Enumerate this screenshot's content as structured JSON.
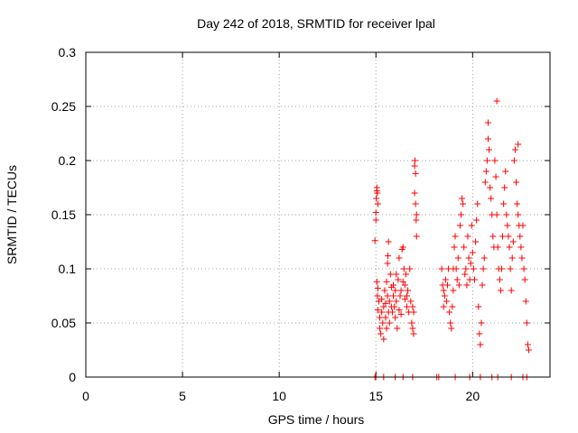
{
  "chart_data": {
    "type": "scatter",
    "title": "Day 242 of 2018, SRMTID for receiver lpal",
    "xlabel": "GPS time / hours",
    "ylabel": "SRMTID / TECUs",
    "xlim": [
      0,
      24
    ],
    "ylim": [
      0,
      0.3
    ],
    "xticks": [
      0,
      5,
      10,
      15,
      20
    ],
    "yticks": [
      0,
      0.05,
      0.1,
      0.15,
      0.2,
      0.25,
      0.3
    ],
    "ytick_labels": [
      "0",
      "0.05",
      "0.1",
      "0.15",
      "0.2",
      "0.25",
      "0.3"
    ],
    "grid": true,
    "marker": "+",
    "marker_color": "#ff0000",
    "series": [
      {
        "name": "SRMTID",
        "points": [
          [
            14.95,
            0.0
          ],
          [
            15.0,
            0.0
          ],
          [
            15.4,
            0.0
          ],
          [
            16.0,
            0.0
          ],
          [
            16.4,
            0.0
          ],
          [
            16.9,
            0.0
          ],
          [
            18.15,
            0.0
          ],
          [
            18.25,
            0.0
          ],
          [
            19.1,
            0.0
          ],
          [
            19.85,
            0.0
          ],
          [
            20.4,
            0.0
          ],
          [
            21.0,
            0.0
          ],
          [
            21.3,
            0.0
          ],
          [
            22.0,
            0.0
          ],
          [
            22.6,
            0.0
          ],
          [
            22.8,
            0.0
          ],
          [
            14.95,
            0.126
          ],
          [
            15.0,
            0.145
          ],
          [
            15.0,
            0.152
          ],
          [
            15.02,
            0.165
          ],
          [
            15.05,
            0.172
          ],
          [
            15.05,
            0.175
          ],
          [
            15.07,
            0.17
          ],
          [
            15.1,
            0.16
          ],
          [
            15.05,
            0.088
          ],
          [
            15.1,
            0.082
          ],
          [
            15.08,
            0.075
          ],
          [
            15.1,
            0.062
          ],
          [
            15.15,
            0.07
          ],
          [
            15.2,
            0.055
          ],
          [
            15.2,
            0.045
          ],
          [
            15.25,
            0.04
          ],
          [
            15.3,
            0.06
          ],
          [
            15.3,
            0.072
          ],
          [
            15.35,
            0.05
          ],
          [
            15.4,
            0.065
          ],
          [
            15.4,
            0.035
          ],
          [
            15.45,
            0.08
          ],
          [
            15.5,
            0.068
          ],
          [
            15.5,
            0.055
          ],
          [
            15.55,
            0.045
          ],
          [
            15.55,
            0.088
          ],
          [
            15.6,
            0.075
          ],
          [
            15.6,
            0.105
          ],
          [
            15.62,
            0.112
          ],
          [
            15.65,
            0.125
          ],
          [
            15.65,
            0.06
          ],
          [
            15.7,
            0.07
          ],
          [
            15.7,
            0.05
          ],
          [
            15.75,
            0.095
          ],
          [
            15.8,
            0.083
          ],
          [
            15.8,
            0.065
          ],
          [
            15.85,
            0.06
          ],
          [
            15.9,
            0.075
          ],
          [
            15.9,
            0.085
          ],
          [
            15.95,
            0.065
          ],
          [
            16.0,
            0.055
          ],
          [
            16.0,
            0.08
          ],
          [
            16.05,
            0.095
          ],
          [
            16.05,
            0.07
          ],
          [
            16.1,
            0.045
          ],
          [
            16.15,
            0.09
          ],
          [
            16.2,
            0.11
          ],
          [
            16.2,
            0.062
          ],
          [
            16.25,
            0.075
          ],
          [
            16.3,
            0.08
          ],
          [
            16.3,
            0.058
          ],
          [
            16.35,
            0.118
          ],
          [
            16.4,
            0.12
          ],
          [
            16.4,
            0.088
          ],
          [
            16.45,
            0.1
          ],
          [
            16.5,
            0.072
          ],
          [
            16.5,
            0.085
          ],
          [
            16.55,
            0.095
          ],
          [
            16.6,
            0.065
          ],
          [
            16.6,
            0.075
          ],
          [
            16.65,
            0.08
          ],
          [
            16.7,
            0.06
          ],
          [
            16.75,
            0.1
          ],
          [
            16.8,
            0.07
          ],
          [
            16.85,
            0.05
          ],
          [
            16.9,
            0.045
          ],
          [
            16.9,
            0.065
          ],
          [
            16.95,
            0.04
          ],
          [
            16.95,
            0.06
          ],
          [
            17.0,
            0.195
          ],
          [
            17.0,
            0.17
          ],
          [
            17.02,
            0.2
          ],
          [
            17.05,
            0.188
          ],
          [
            17.05,
            0.16
          ],
          [
            17.08,
            0.145
          ],
          [
            17.1,
            0.13
          ],
          [
            17.1,
            0.15
          ],
          [
            18.4,
            0.1
          ],
          [
            18.45,
            0.085
          ],
          [
            18.5,
            0.08
          ],
          [
            18.5,
            0.065
          ],
          [
            18.55,
            0.075
          ],
          [
            18.6,
            0.09
          ],
          [
            18.65,
            0.07
          ],
          [
            18.7,
            0.085
          ],
          [
            18.75,
            0.1
          ],
          [
            18.8,
            0.06
          ],
          [
            18.85,
            0.05
          ],
          [
            18.9,
            0.045
          ],
          [
            18.95,
            0.065
          ],
          [
            19.0,
            0.08
          ],
          [
            19.0,
            0.1
          ],
          [
            19.05,
            0.12
          ],
          [
            19.1,
            0.13
          ],
          [
            19.15,
            0.1
          ],
          [
            19.2,
            0.09
          ],
          [
            19.25,
            0.11
          ],
          [
            19.3,
            0.085
          ],
          [
            19.35,
            0.14
          ],
          [
            19.4,
            0.15
          ],
          [
            19.45,
            0.165
          ],
          [
            19.5,
            0.16
          ],
          [
            19.55,
            0.12
          ],
          [
            19.6,
            0.095
          ],
          [
            19.65,
            0.1
          ],
          [
            19.7,
            0.085
          ],
          [
            19.75,
            0.13
          ],
          [
            19.8,
            0.11
          ],
          [
            19.85,
            0.09
          ],
          [
            19.9,
            0.105
          ],
          [
            19.95,
            0.14
          ],
          [
            20.0,
            0.115
          ],
          [
            20.05,
            0.1
          ],
          [
            20.1,
            0.09
          ],
          [
            20.15,
            0.125
          ],
          [
            20.2,
            0.145
          ],
          [
            20.25,
            0.16
          ],
          [
            20.3,
            0.065
          ],
          [
            20.35,
            0.04
          ],
          [
            20.4,
            0.03
          ],
          [
            20.45,
            0.05
          ],
          [
            20.5,
            0.085
          ],
          [
            20.55,
            0.1
          ],
          [
            20.6,
            0.11
          ],
          [
            20.65,
            0.18
          ],
          [
            20.7,
            0.19
          ],
          [
            20.75,
            0.2
          ],
          [
            20.8,
            0.22
          ],
          [
            20.8,
            0.235
          ],
          [
            20.85,
            0.21
          ],
          [
            20.9,
            0.175
          ],
          [
            20.95,
            0.165
          ],
          [
            21.0,
            0.15
          ],
          [
            21.05,
            0.13
          ],
          [
            21.1,
            0.12
          ],
          [
            21.15,
            0.2
          ],
          [
            21.2,
            0.185
          ],
          [
            21.25,
            0.15
          ],
          [
            21.3,
            0.12
          ],
          [
            21.35,
            0.1
          ],
          [
            21.4,
            0.09
          ],
          [
            21.45,
            0.08
          ],
          [
            21.5,
            0.1
          ],
          [
            21.55,
            0.13
          ],
          [
            21.6,
            0.16
          ],
          [
            21.65,
            0.175
          ],
          [
            21.7,
            0.19
          ],
          [
            21.75,
            0.15
          ],
          [
            21.8,
            0.14
          ],
          [
            21.85,
            0.13
          ],
          [
            21.9,
            0.12
          ],
          [
            21.95,
            0.1
          ],
          [
            22.0,
            0.08
          ],
          [
            22.05,
            0.11
          ],
          [
            22.1,
            0.125
          ],
          [
            22.15,
            0.2
          ],
          [
            22.2,
            0.21
          ],
          [
            22.25,
            0.18
          ],
          [
            22.3,
            0.16
          ],
          [
            22.35,
            0.15
          ],
          [
            22.4,
            0.14
          ],
          [
            22.45,
            0.13
          ],
          [
            22.5,
            0.12
          ],
          [
            22.55,
            0.11
          ],
          [
            22.6,
            0.14
          ],
          [
            22.65,
            0.1
          ],
          [
            22.7,
            0.09
          ],
          [
            22.75,
            0.07
          ],
          [
            22.8,
            0.05
          ],
          [
            22.85,
            0.03
          ],
          [
            22.9,
            0.025
          ],
          [
            21.25,
            0.255
          ],
          [
            22.35,
            0.215
          ]
        ]
      }
    ]
  }
}
